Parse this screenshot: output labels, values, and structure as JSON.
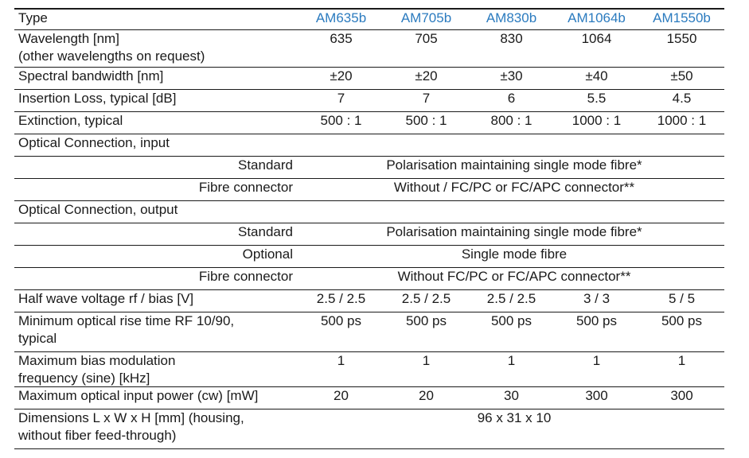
{
  "header": {
    "label": "Type",
    "models": [
      "AM635b",
      "AM705b",
      "AM830b",
      "AM1064b",
      "AM1550b"
    ]
  },
  "rows": [
    {
      "label": "Wavelength [nm]\n(other wavelengths on request)",
      "values": [
        "635",
        "705",
        "830",
        "1064",
        "1550"
      ]
    },
    {
      "label": "Spectral bandwidth [nm]",
      "values": [
        "±20",
        "±20",
        "±30",
        "±40",
        "±50"
      ]
    },
    {
      "label": "Insertion Loss, typical [dB]",
      "values": [
        "7",
        "7",
        "6",
        "5.5",
        "4.5"
      ]
    },
    {
      "label": "Extinction, typical",
      "values": [
        "500 : 1",
        "500 : 1",
        "800 : 1",
        "1000 : 1",
        "1000 : 1"
      ]
    },
    {
      "label": "Optical Connection, input",
      "span": ""
    },
    {
      "label": "Standard",
      "right": true,
      "span": "Polarisation maintaining single mode fibre*"
    },
    {
      "label": "Fibre connector",
      "right": true,
      "span": "Without / FC/PC or FC/APC connector**"
    },
    {
      "label": "Optical Connection, output",
      "span": ""
    },
    {
      "label": "Standard",
      "right": true,
      "span": "Polarisation maintaining single mode fibre*"
    },
    {
      "label": "Optional",
      "right": true,
      "span": "Single mode fibre"
    },
    {
      "label": "Fibre connector",
      "right": true,
      "span": "Without FC/PC or FC/APC connector**"
    },
    {
      "label": "Half wave voltage rf / bias [V]",
      "values": [
        "2.5 / 2.5",
        "2.5 / 2.5",
        "2.5 / 2.5",
        "3 / 3",
        "5 / 5"
      ]
    },
    {
      "label": "Minimum optical rise time RF 10/90,\ntypical",
      "values": [
        "500 ps",
        "500 ps",
        "500 ps",
        "500 ps",
        "500 ps"
      ]
    },
    {
      "label": "Maximum bias modulation\nfrequency (sine) [kHz]",
      "values": [
        "1",
        "1",
        "1",
        "1",
        "1"
      ]
    },
    {
      "label": "Maximum optical input power (cw) [mW]",
      "values": [
        "20",
        "20",
        "30",
        "300",
        "300"
      ]
    },
    {
      "label": "Dimensions L x W x H [mm] (housing,\nwithout fiber feed-through)",
      "span": "96 x 31 x 10"
    }
  ]
}
